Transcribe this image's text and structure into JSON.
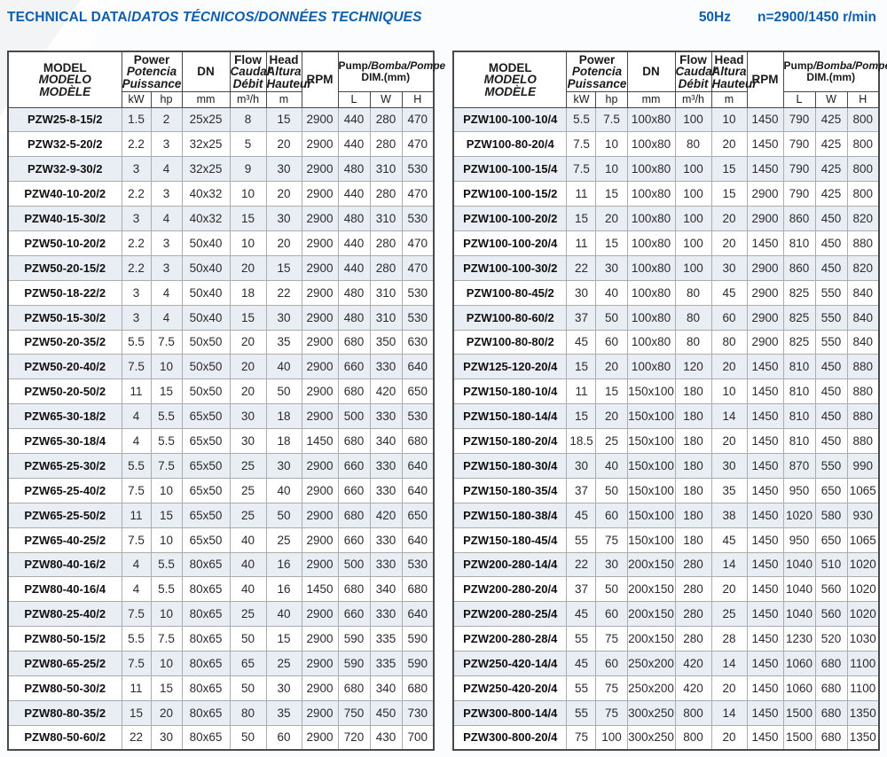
{
  "header": {
    "title_en": "TECHNICAL DATA/",
    "title_intl": "DATOS TÉCNICOS/DONNÉES TECHNIQUES",
    "frequency": "50Hz",
    "speed": "n=2900/1450 r/min"
  },
  "columns": {
    "model": [
      "MODEL",
      "MODELO",
      "MODÈLE"
    ],
    "power": [
      "Power",
      "Potencia",
      "Puissance"
    ],
    "dn": "DN",
    "flow": [
      "Flow",
      "Caudal",
      "Débit"
    ],
    "head": [
      "Head",
      "Altura",
      "Hauteur"
    ],
    "rpm": "RPM",
    "pump": {
      "en": "Pump",
      "intl": "/Bomba/Pompe",
      "dim": "DIM.(mm)"
    },
    "units": {
      "kw": "kW",
      "hp": "hp",
      "dn": "mm",
      "flow": "m³/h",
      "head": "m",
      "l": "L",
      "w": "W",
      "h": "H"
    }
  },
  "tables": [
    {
      "name": "left",
      "rows": [
        [
          "PZW25-8-15/2",
          "1.5",
          "2",
          "25x25",
          "8",
          "15",
          "2900",
          "440",
          "280",
          "470"
        ],
        [
          "PZW32-5-20/2",
          "2.2",
          "3",
          "32x25",
          "5",
          "20",
          "2900",
          "440",
          "280",
          "470"
        ],
        [
          "PZW32-9-30/2",
          "3",
          "4",
          "32x25",
          "9",
          "30",
          "2900",
          "480",
          "310",
          "530"
        ],
        [
          "PZW40-10-20/2",
          "2.2",
          "3",
          "40x32",
          "10",
          "20",
          "2900",
          "440",
          "280",
          "470"
        ],
        [
          "PZW40-15-30/2",
          "3",
          "4",
          "40x32",
          "15",
          "30",
          "2900",
          "480",
          "310",
          "530"
        ],
        [
          "PZW50-10-20/2",
          "2.2",
          "3",
          "50x40",
          "10",
          "20",
          "2900",
          "440",
          "280",
          "470"
        ],
        [
          "PZW50-20-15/2",
          "2.2",
          "3",
          "50x40",
          "20",
          "15",
          "2900",
          "440",
          "280",
          "470"
        ],
        [
          "PZW50-18-22/2",
          "3",
          "4",
          "50x40",
          "18",
          "22",
          "2900",
          "480",
          "310",
          "530"
        ],
        [
          "PZW50-15-30/2",
          "3",
          "4",
          "50x40",
          "15",
          "30",
          "2900",
          "480",
          "310",
          "530"
        ],
        [
          "PZW50-20-35/2",
          "5.5",
          "7.5",
          "50x50",
          "20",
          "35",
          "2900",
          "680",
          "350",
          "630"
        ],
        [
          "PZW50-20-40/2",
          "7.5",
          "10",
          "50x50",
          "20",
          "40",
          "2900",
          "660",
          "330",
          "640"
        ],
        [
          "PZW50-20-50/2",
          "11",
          "15",
          "50x50",
          "20",
          "50",
          "2900",
          "680",
          "420",
          "650"
        ],
        [
          "PZW65-30-18/2",
          "4",
          "5.5",
          "65x50",
          "30",
          "18",
          "2900",
          "500",
          "330",
          "530"
        ],
        [
          "PZW65-30-18/4",
          "4",
          "5.5",
          "65x50",
          "30",
          "18",
          "1450",
          "680",
          "340",
          "680"
        ],
        [
          "PZW65-25-30/2",
          "5.5",
          "7.5",
          "65x50",
          "25",
          "30",
          "2900",
          "660",
          "330",
          "640"
        ],
        [
          "PZW65-25-40/2",
          "7.5",
          "10",
          "65x50",
          "25",
          "40",
          "2900",
          "660",
          "330",
          "640"
        ],
        [
          "PZW65-25-50/2",
          "11",
          "15",
          "65x50",
          "25",
          "50",
          "2900",
          "680",
          "420",
          "650"
        ],
        [
          "PZW65-40-25/2",
          "7.5",
          "10",
          "65x50",
          "40",
          "25",
          "2900",
          "660",
          "330",
          "640"
        ],
        [
          "PZW80-40-16/2",
          "4",
          "5.5",
          "80x65",
          "40",
          "16",
          "2900",
          "500",
          "330",
          "530"
        ],
        [
          "PZW80-40-16/4",
          "4",
          "5.5",
          "80x65",
          "40",
          "16",
          "1450",
          "680",
          "340",
          "680"
        ],
        [
          "PZW80-25-40/2",
          "7.5",
          "10",
          "80x65",
          "25",
          "40",
          "2900",
          "660",
          "330",
          "640"
        ],
        [
          "PZW80-50-15/2",
          "5.5",
          "7.5",
          "80x65",
          "50",
          "15",
          "2900",
          "590",
          "335",
          "590"
        ],
        [
          "PZW80-65-25/2",
          "7.5",
          "10",
          "80x65",
          "65",
          "25",
          "2900",
          "590",
          "335",
          "590"
        ],
        [
          "PZW80-50-30/2",
          "11",
          "15",
          "80x65",
          "50",
          "30",
          "2900",
          "680",
          "340",
          "680"
        ],
        [
          "PZW80-80-35/2",
          "15",
          "20",
          "80x65",
          "80",
          "35",
          "2900",
          "750",
          "450",
          "730"
        ],
        [
          "PZW80-50-60/2",
          "22",
          "30",
          "80x65",
          "50",
          "60",
          "2900",
          "720",
          "430",
          "700"
        ]
      ]
    },
    {
      "name": "right",
      "rows": [
        [
          "PZW100-100-10/4",
          "5.5",
          "7.5",
          "100x80",
          "100",
          "10",
          "1450",
          "790",
          "425",
          "800"
        ],
        [
          "PZW100-80-20/4",
          "7.5",
          "10",
          "100x80",
          "80",
          "20",
          "1450",
          "790",
          "425",
          "800"
        ],
        [
          "PZW100-100-15/4",
          "7.5",
          "10",
          "100x80",
          "100",
          "15",
          "1450",
          "790",
          "425",
          "800"
        ],
        [
          "PZW100-100-15/2",
          "11",
          "15",
          "100x80",
          "100",
          "15",
          "2900",
          "790",
          "425",
          "800"
        ],
        [
          "PZW100-100-20/2",
          "15",
          "20",
          "100x80",
          "100",
          "20",
          "2900",
          "860",
          "450",
          "820"
        ],
        [
          "PZW100-100-20/4",
          "11",
          "15",
          "100x80",
          "100",
          "20",
          "1450",
          "810",
          "450",
          "880"
        ],
        [
          "PZW100-100-30/2",
          "22",
          "30",
          "100x80",
          "100",
          "30",
          "2900",
          "860",
          "450",
          "820"
        ],
        [
          "PZW100-80-45/2",
          "30",
          "40",
          "100x80",
          "80",
          "45",
          "2900",
          "825",
          "550",
          "840"
        ],
        [
          "PZW100-80-60/2",
          "37",
          "50",
          "100x80",
          "80",
          "60",
          "2900",
          "825",
          "550",
          "840"
        ],
        [
          "PZW100-80-80/2",
          "45",
          "60",
          "100x80",
          "80",
          "80",
          "2900",
          "825",
          "550",
          "840"
        ],
        [
          "PZW125-120-20/4",
          "15",
          "20",
          "100x80",
          "120",
          "20",
          "1450",
          "810",
          "450",
          "880"
        ],
        [
          "PZW150-180-10/4",
          "11",
          "15",
          "150x100",
          "180",
          "10",
          "1450",
          "810",
          "450",
          "880"
        ],
        [
          "PZW150-180-14/4",
          "15",
          "20",
          "150x100",
          "180",
          "14",
          "1450",
          "810",
          "450",
          "880"
        ],
        [
          "PZW150-180-20/4",
          "18.5",
          "25",
          "150x100",
          "180",
          "20",
          "1450",
          "810",
          "450",
          "880"
        ],
        [
          "PZW150-180-30/4",
          "30",
          "40",
          "150x100",
          "180",
          "30",
          "1450",
          "870",
          "550",
          "990"
        ],
        [
          "PZW150-180-35/4",
          "37",
          "50",
          "150x100",
          "180",
          "35",
          "1450",
          "950",
          "650",
          "1065"
        ],
        [
          "PZW150-180-38/4",
          "45",
          "60",
          "150x100",
          "180",
          "38",
          "1450",
          "1020",
          "580",
          "930"
        ],
        [
          "PZW150-180-45/4",
          "55",
          "75",
          "150x100",
          "180",
          "45",
          "1450",
          "950",
          "650",
          "1065"
        ],
        [
          "PZW200-280-14/4",
          "22",
          "30",
          "200x150",
          "280",
          "14",
          "1450",
          "1040",
          "510",
          "1020"
        ],
        [
          "PZW200-280-20/4",
          "37",
          "50",
          "200x150",
          "280",
          "20",
          "1450",
          "1040",
          "560",
          "1020"
        ],
        [
          "PZW200-280-25/4",
          "45",
          "60",
          "200x150",
          "280",
          "25",
          "1450",
          "1040",
          "560",
          "1020"
        ],
        [
          "PZW200-280-28/4",
          "55",
          "75",
          "200x150",
          "280",
          "28",
          "1450",
          "1230",
          "520",
          "1030"
        ],
        [
          "PZW250-420-14/4",
          "45",
          "60",
          "250x200",
          "420",
          "14",
          "1450",
          "1060",
          "680",
          "1100"
        ],
        [
          "PZW250-420-20/4",
          "55",
          "75",
          "250x200",
          "420",
          "20",
          "1450",
          "1060",
          "680",
          "1100"
        ],
        [
          "PZW300-800-14/4",
          "55",
          "75",
          "300x250",
          "800",
          "14",
          "1450",
          "1500",
          "680",
          "1350"
        ],
        [
          "PZW300-800-20/4",
          "75",
          "100",
          "300x250",
          "800",
          "20",
          "1450",
          "1500",
          "680",
          "1350"
        ]
      ]
    }
  ],
  "colors": {
    "title_blue": "#0e5ead",
    "row_stripe": "#e9edf4",
    "outer_border": "#4a4a4a",
    "cell_border": "#acacac"
  }
}
